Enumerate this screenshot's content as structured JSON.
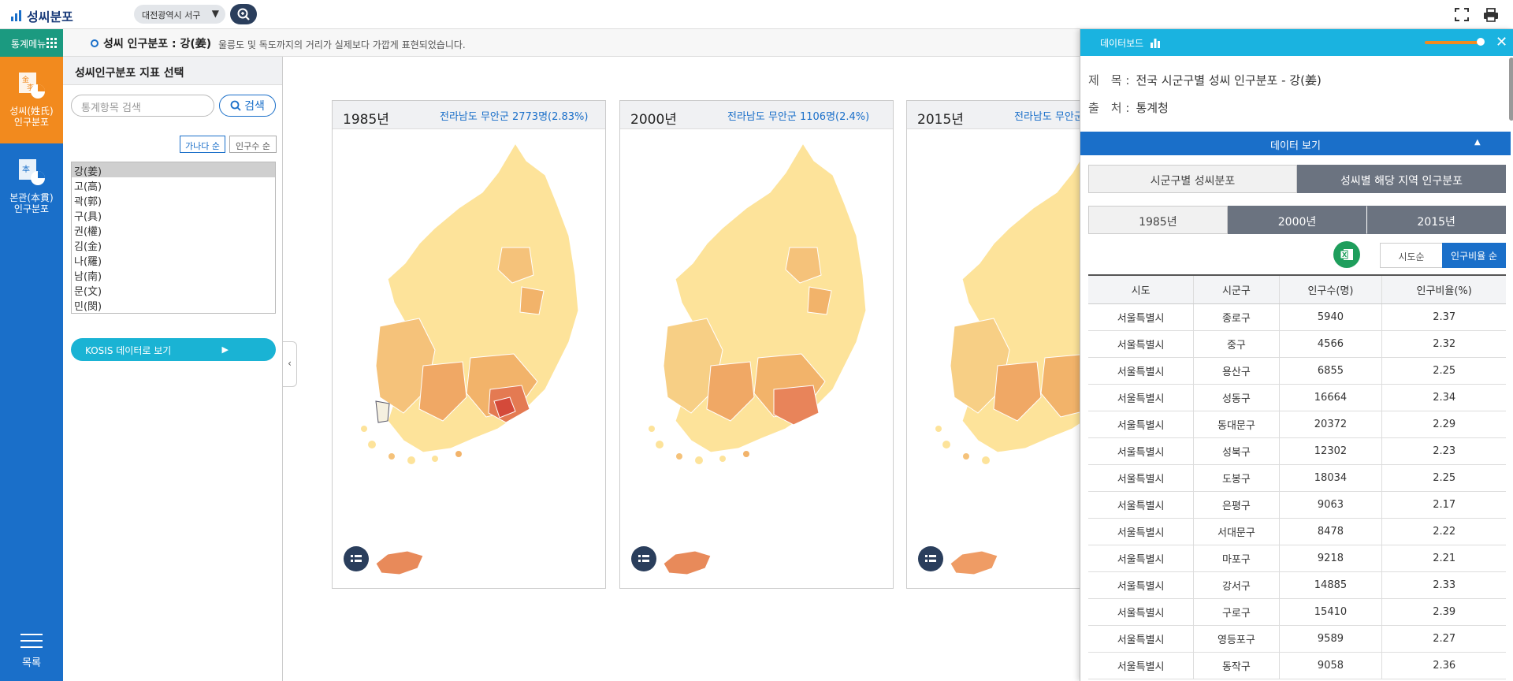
{
  "app": {
    "title": "성씨분포"
  },
  "topbar": {
    "region": "대전광역시 서구"
  },
  "subbar": {
    "menu_label": "통계메뉴",
    "heading": "성씨 인구분포 : 강(姜)",
    "notice": "울릉도 및 독도까지의 거리가 실제보다 가깝게 표현되었습니다."
  },
  "leftnav": {
    "surname_line1": "성씨(姓氏)",
    "surname_line2": "인구분포",
    "origin_line1": "본관(本貫)",
    "origin_line2": "인구분포",
    "list_label": "목록"
  },
  "indicator": {
    "title": "성씨인구분포 지표 선택",
    "search_placeholder": "통계항목 검색",
    "search_button": "검색",
    "sort_alpha": "가나다 순",
    "sort_population": "인구수 순",
    "surnames": [
      "강(姜)",
      "고(高)",
      "곽(郭)",
      "구(具)",
      "권(權)",
      "김(金)",
      "나(羅)",
      "남(南)",
      "문(文)",
      "민(閔)"
    ],
    "kosis_button": "KOSIS 데이터로 보기"
  },
  "maps": [
    {
      "year": "1985년",
      "summary": "전라남도 무안군 2773명(2.83%)"
    },
    {
      "year": "2000년",
      "summary": "전라남도 무안군 1106명(2.4%)"
    },
    {
      "year": "2015년",
      "summary": "전라남도 무안군"
    }
  ],
  "databoard": {
    "header": "데이터보드",
    "title_key": "제　목 :",
    "title_value": "전국 시군구별 성씨 인구분포 - 강(姜)",
    "source_key": "출　처 :",
    "source_value": "통계청",
    "dataview": "데이터 보기",
    "tabs": [
      "시군구별 성씨분포",
      "성씨별 해당 지역 인구분포"
    ],
    "years": [
      "1985년",
      "2000년",
      "2015년"
    ],
    "order_sido": "시도순",
    "order_ratio": "인구비율 순",
    "columns": [
      "시도",
      "시군구",
      "인구수(명)",
      "인구비율(%)"
    ],
    "rows": [
      [
        "서울특별시",
        "종로구",
        "5940",
        "2.37"
      ],
      [
        "서울특별시",
        "중구",
        "4566",
        "2.32"
      ],
      [
        "서울특별시",
        "용산구",
        "6855",
        "2.25"
      ],
      [
        "서울특별시",
        "성동구",
        "16664",
        "2.34"
      ],
      [
        "서울특별시",
        "동대문구",
        "20372",
        "2.29"
      ],
      [
        "서울특별시",
        "성북구",
        "12302",
        "2.23"
      ],
      [
        "서울특별시",
        "도봉구",
        "18034",
        "2.25"
      ],
      [
        "서울특별시",
        "은평구",
        "9063",
        "2.17"
      ],
      [
        "서울특별시",
        "서대문구",
        "8478",
        "2.22"
      ],
      [
        "서울특별시",
        "마포구",
        "9218",
        "2.21"
      ],
      [
        "서울특별시",
        "강서구",
        "14885",
        "2.33"
      ],
      [
        "서울특별시",
        "구로구",
        "15410",
        "2.39"
      ],
      [
        "서울특별시",
        "영등포구",
        "9589",
        "2.27"
      ],
      [
        "서울특별시",
        "동작구",
        "9058",
        "2.36"
      ]
    ]
  },
  "colors": {
    "nav": "#1a6fc9",
    "nav_active": "#f28a1e",
    "accent": "#1ab3e0",
    "map_light": "#fde39a",
    "map_mid": "#f2b36a",
    "map_dark": "#e06a4a"
  }
}
